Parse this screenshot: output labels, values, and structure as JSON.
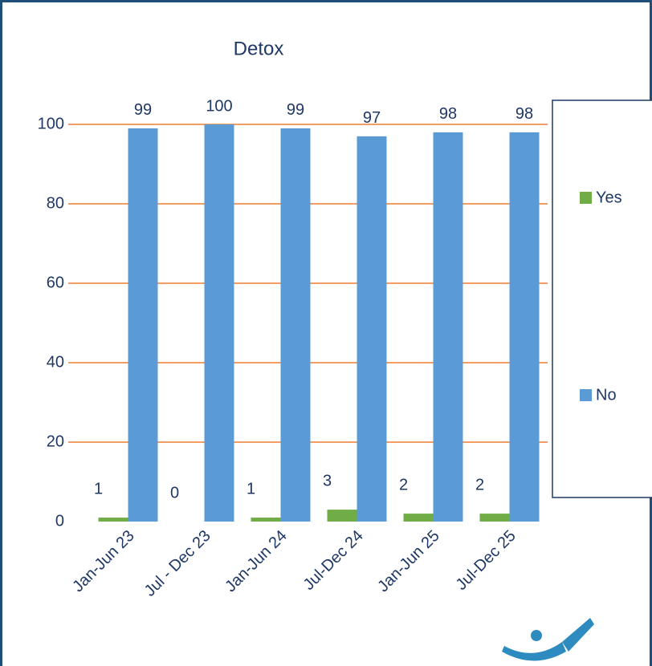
{
  "chart_data": {
    "type": "bar",
    "title": "Detox",
    "categories": [
      "Jan-Jun 23",
      "Jul - Dec 23",
      "Jan-Jun 24",
      "Jul-Dec 24",
      "Jan-Jun 25",
      "Jul-Dec 25"
    ],
    "series": [
      {
        "name": "Yes",
        "color": "#70ad47",
        "values": [
          1,
          0,
          1,
          3,
          2,
          2
        ]
      },
      {
        "name": "No",
        "color": "#5b9bd5",
        "values": [
          99,
          100,
          99,
          97,
          98,
          98
        ]
      }
    ],
    "ylim": [
      0,
      100
    ],
    "yticks": [
      0,
      20,
      40,
      60,
      80,
      100
    ],
    "grid": true,
    "legend": "right"
  }
}
